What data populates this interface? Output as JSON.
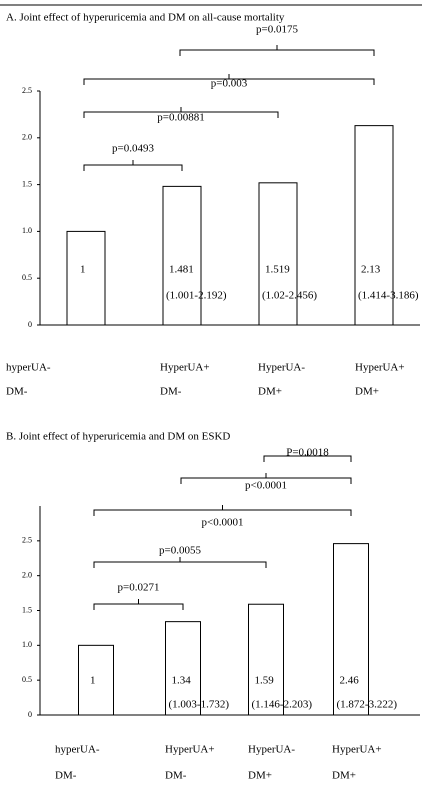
{
  "chart_data": [
    {
      "type": "bar",
      "title": "A. Joint effect of hyperuricemia and DM on all-cause mortality",
      "categories": [
        [
          "hyperUA-",
          "DM-"
        ],
        [
          "HyperUA+",
          "DM-"
        ],
        [
          "HyperUA-",
          "DM+"
        ],
        [
          "HyperUA+",
          "DM+"
        ]
      ],
      "values": [
        1,
        1.481,
        1.519,
        2.13
      ],
      "ci_labels": [
        null,
        "(1.001-2.192)",
        "(1.02-2.456)",
        "(1.414-3.186)"
      ],
      "color": "#ffffff",
      "ylim": [
        0,
        2.5
      ],
      "yticks": [
        0,
        0.5,
        {
          "value": 1,
          "label": "1.0"
        },
        1.5,
        {
          "value": 2,
          "label": "2.0"
        },
        2.5
      ],
      "grid": false,
      "comparisons": [
        {
          "from": 0,
          "to": 1,
          "label": "p=0.0493"
        },
        {
          "from": 0,
          "to": 2,
          "label": "p=0.00881"
        },
        {
          "from": 0,
          "to": 3,
          "label": "p=0.003"
        },
        {
          "from": 1,
          "to": 3,
          "label": "p=0.0175"
        }
      ]
    },
    {
      "type": "bar",
      "title": "B. Joint effect of hyperuricemia and DM on ESKD",
      "categories": [
        [
          "hyperUA-",
          "DM-"
        ],
        [
          "HyperUA+",
          "DM-"
        ],
        [
          "HyperUA-",
          "DM+"
        ],
        [
          "HyperUA+",
          "DM+"
        ]
      ],
      "values": [
        1,
        1.34,
        1.59,
        2.46
      ],
      "ci_labels": [
        null,
        "(1.003-1.732)",
        "(1.146-2.203)",
        "(1.872-3.222)"
      ],
      "color": "#ffffff",
      "ylim": [
        0,
        3
      ],
      "yticks": [
        0,
        0.5,
        {
          "value": 1,
          "label": "1.0"
        },
        1.5,
        {
          "value": 2,
          "label": "2.0"
        },
        2.5
      ],
      "grid": false,
      "comparisons": [
        {
          "from": 0,
          "to": 1,
          "label": "p=0.0271"
        },
        {
          "from": 0,
          "to": 2,
          "label": "p=0.0055"
        },
        {
          "from": 0,
          "to": 3,
          "label": "p<0.0001"
        },
        {
          "from": 1,
          "to": 3,
          "label": "p<0.0001"
        },
        {
          "from": 2,
          "to": 3,
          "label": "P=0.0018"
        }
      ]
    }
  ]
}
